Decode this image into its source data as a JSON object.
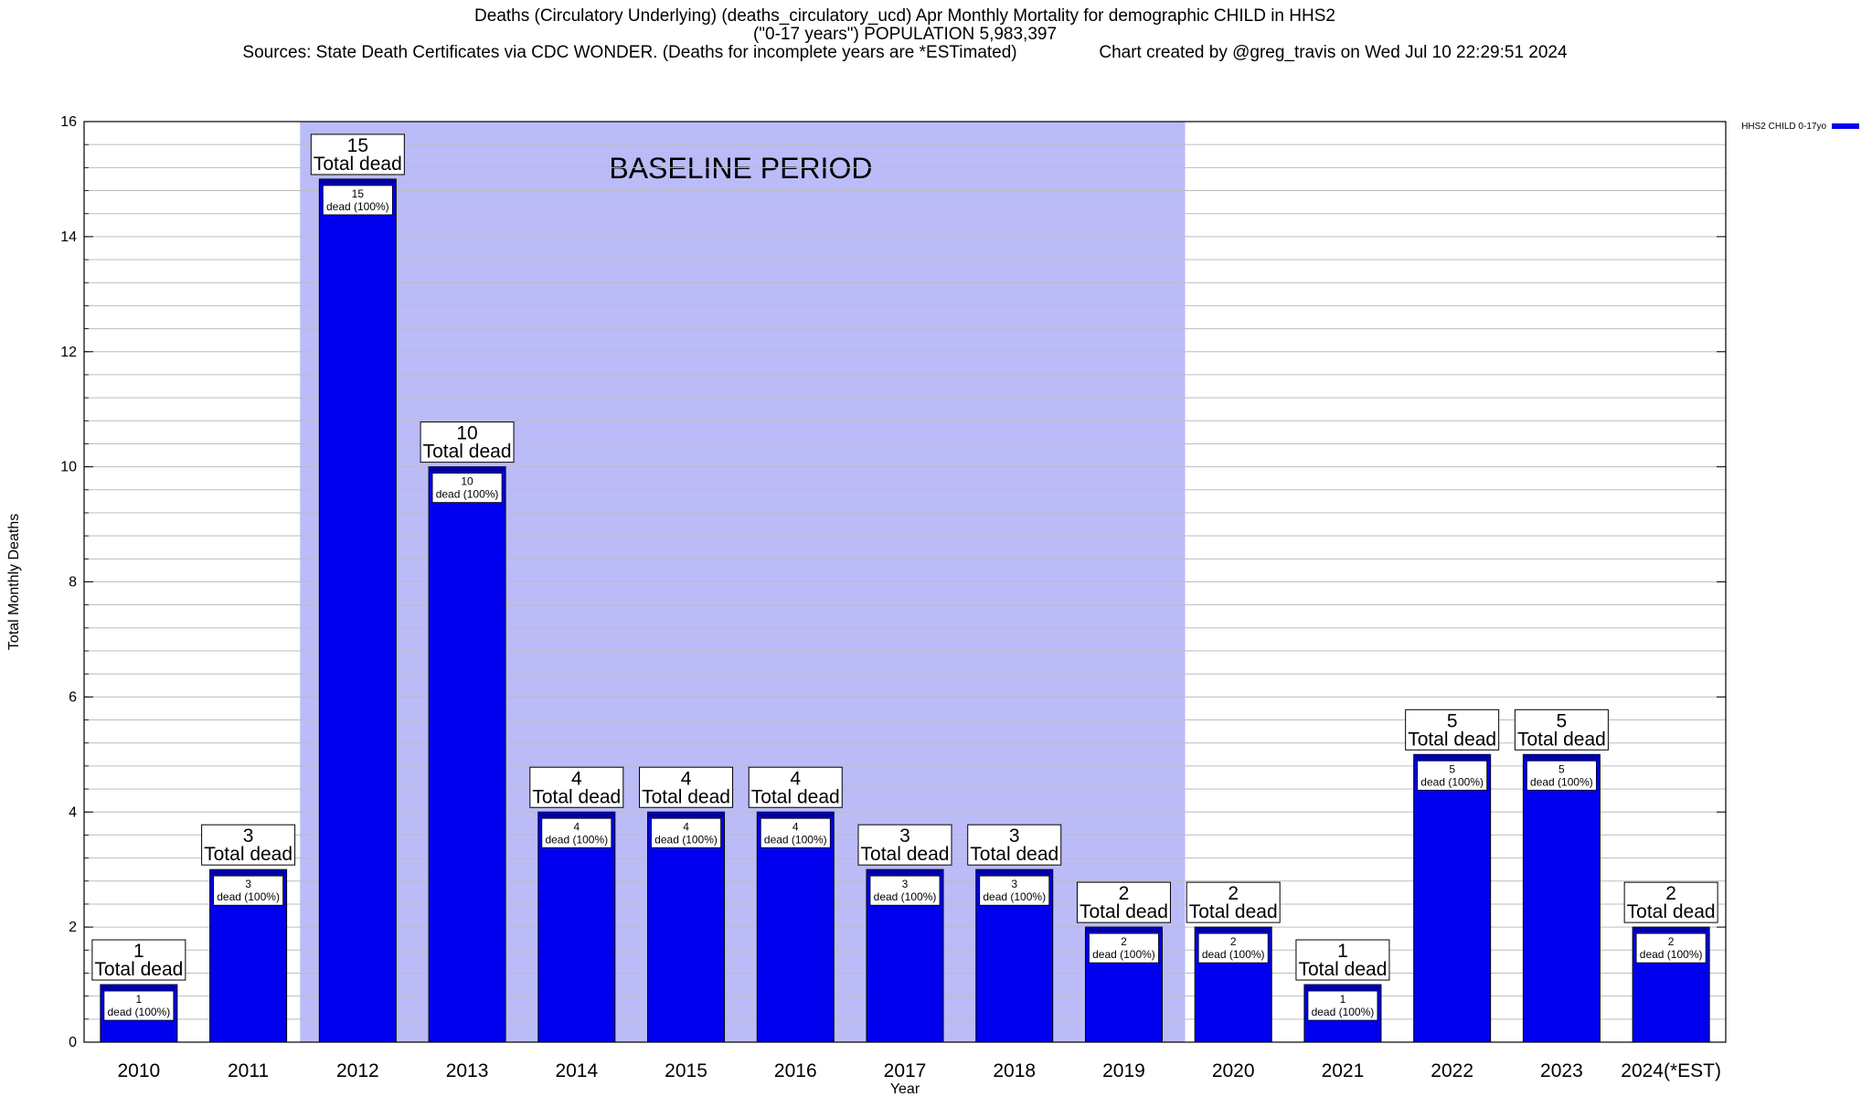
{
  "title_lines": [
    "Deaths (Circulatory Underlying) (deaths_circulatory_ucd) Apr Monthly Mortality for demographic CHILD in HHS2",
    "(\"0-17 years\") POPULATION 5,983,397",
    "Sources: State Death Certificates via CDC WONDER. (Deaths for incomplete years are *ESTimated)                 Chart created by @greg_travis on Wed Jul 10 22:29:51 2024"
  ],
  "chart_data": {
    "type": "bar",
    "categories": [
      "2010",
      "2011",
      "2012",
      "2013",
      "2014",
      "2015",
      "2016",
      "2017",
      "2018",
      "2019",
      "2020",
      "2021",
      "2022",
      "2023",
      "2024(*EST)"
    ],
    "series": [
      {
        "name": "HHS2 CHILD 0-17yo",
        "values": [
          1,
          3,
          15,
          10,
          4,
          4,
          4,
          3,
          3,
          2,
          2,
          1,
          5,
          5,
          2
        ]
      }
    ],
    "callout_suffix": "Total dead",
    "inner_label_suffix": "dead (100%)",
    "xlabel": "Year",
    "ylabel": "Total Monthly Deaths",
    "ylim": [
      0,
      16
    ],
    "yticks": [
      0,
      2,
      4,
      6,
      8,
      10,
      12,
      14,
      16
    ],
    "minor_grid_step": 0.4,
    "grid": true,
    "legend_position": "top-right",
    "baseline": {
      "label": "BASELINE PERIOD",
      "start": "2012",
      "end": "2019"
    },
    "colors": {
      "bar": "#0000ee",
      "bar_top": "#0000aa",
      "baseline_band": "#bbbbf8",
      "grid": "#bdbdbd"
    }
  }
}
